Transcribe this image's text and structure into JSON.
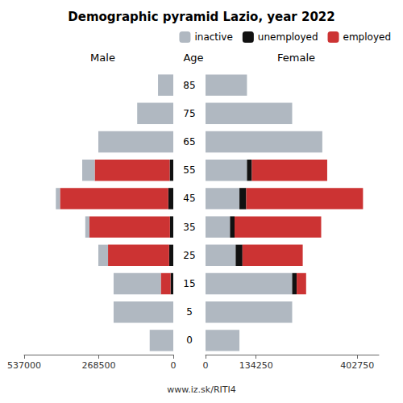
{
  "chart_data": [
    {
      "type": "bar",
      "orientation": "horizontal",
      "stacked": true,
      "title": "Demographic pyramid Lazio, year 2022",
      "subtitle": "Male",
      "ylabel": "Age",
      "categories": [
        "0",
        "5",
        "15",
        "25",
        "35",
        "45",
        "55",
        "65",
        "75",
        "85"
      ],
      "series": [
        {
          "name": "unemployed",
          "color": "#111111",
          "values": [
            0,
            0,
            10000,
            15000,
            12000,
            18000,
            13000,
            0,
            0,
            0
          ]
        },
        {
          "name": "employed",
          "color": "#cc3333",
          "values": [
            0,
            0,
            35000,
            220000,
            290000,
            390000,
            270000,
            0,
            0,
            0
          ]
        },
        {
          "name": "inactive",
          "color": "#b0b8c1",
          "values": [
            85000,
            215000,
            170000,
            35000,
            15000,
            15000,
            45000,
            270000,
            130000,
            55000
          ]
        }
      ],
      "xlim": [
        537000,
        0
      ],
      "xticks": [
        537000,
        268500,
        0
      ],
      "grid": false
    },
    {
      "type": "bar",
      "orientation": "horizontal",
      "stacked": true,
      "subtitle": "Female",
      "categories": [
        "0",
        "5",
        "15",
        "25",
        "35",
        "45",
        "55",
        "65",
        "75",
        "85"
      ],
      "series": [
        {
          "name": "inactive",
          "color": "#b0b8c1",
          "values": [
            90000,
            230000,
            230000,
            80000,
            65000,
            90000,
            110000,
            310000,
            230000,
            110000
          ]
        },
        {
          "name": "unemployed",
          "color": "#111111",
          "values": [
            0,
            0,
            12000,
            18000,
            12000,
            18000,
            13000,
            0,
            0,
            0
          ]
        },
        {
          "name": "employed",
          "color": "#cc3333",
          "values": [
            0,
            0,
            25000,
            160000,
            230000,
            310000,
            200000,
            0,
            0,
            0
          ]
        }
      ],
      "xlim": [
        0,
        460000
      ],
      "xticks": [
        0,
        134250,
        402750
      ],
      "grid": false,
      "legend": "upper right",
      "annotations": [
        "www.iz.sk/RITI4"
      ]
    }
  ]
}
